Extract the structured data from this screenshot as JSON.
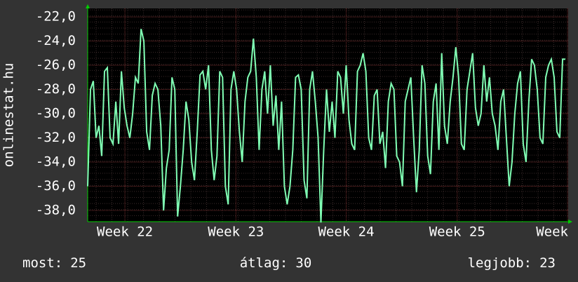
{
  "chart_data": {
    "type": "line",
    "y_label": "onlinestat.hu",
    "ylim": [
      -38.93,
      -21.3
    ],
    "yticks": [
      {
        "value": -22,
        "label": "-22,0"
      },
      {
        "value": -24,
        "label": "-24,0"
      },
      {
        "value": -26,
        "label": "-26,0"
      },
      {
        "value": -28,
        "label": "-28,0"
      },
      {
        "value": -30,
        "label": "-30,0"
      },
      {
        "value": -32,
        "label": "-32,0"
      },
      {
        "value": -34,
        "label": "-34,0"
      },
      {
        "value": -36,
        "label": "-36,0"
      },
      {
        "value": -38,
        "label": "-38,0"
      }
    ],
    "xlim": [
      0,
      171
    ],
    "xticks": [
      {
        "value": 13.25,
        "label": "Week 22"
      },
      {
        "value": 52.75,
        "label": "Week 23"
      },
      {
        "value": 92,
        "label": "Week 24"
      },
      {
        "value": 131.5,
        "label": "Week 25"
      },
      {
        "value": 170.75,
        "label": "Week"
      }
    ],
    "grid": true,
    "series": [
      {
        "color": "#80ffb4",
        "values": [
          -36,
          -28,
          -27.3,
          -32,
          -31,
          -33.5,
          -26.5,
          -26.2,
          -32,
          -32.5,
          -29,
          -32.5,
          -26.5,
          -29.5,
          -31,
          -32,
          -30,
          -27,
          -27.5,
          -23,
          -24,
          -31.5,
          -33,
          -28.5,
          -27.5,
          -28,
          -31,
          -38,
          -34.5,
          -33,
          -27,
          -28,
          -38.5,
          -36,
          -33,
          -29,
          -30.5,
          -34,
          -35.5,
          -31.5,
          -26.8,
          -26.5,
          -28,
          -26,
          -33,
          -35.5,
          -33.5,
          -26.5,
          -27,
          -36,
          -37.5,
          -28,
          -26.5,
          -28,
          -31.5,
          -34,
          -29,
          -27,
          -26.5,
          -23.8,
          -27,
          -33,
          -28,
          -26.5,
          -30,
          -26,
          -31,
          -28.5,
          -33,
          -29,
          -36,
          -37.5,
          -36,
          -33,
          -27,
          -26.8,
          -28,
          -35.5,
          -37,
          -28,
          -26.5,
          -29,
          -32,
          -39,
          -33,
          -28,
          -31.5,
          -29,
          -32,
          -26.5,
          -27,
          -30,
          -26,
          -30.5,
          -32.5,
          -33,
          -26.5,
          -26,
          -25,
          -26.5,
          -32,
          -33,
          -28.5,
          -28,
          -32.5,
          -31.5,
          -34.5,
          -29,
          -27.5,
          -28,
          -33.5,
          -34,
          -36,
          -29,
          -28,
          -27,
          -32,
          -36.5,
          -33,
          -26,
          -27.5,
          -33.5,
          -35,
          -29,
          -27.5,
          -33,
          -25,
          -31,
          -32.5,
          -29,
          -27,
          -24.5,
          -27,
          -32.5,
          -33,
          -28,
          -26.5,
          -25,
          -29.5,
          -31,
          -30,
          -26,
          -29,
          -27,
          -30,
          -31,
          -33,
          -29,
          -28,
          -32,
          -36,
          -34,
          -30,
          -27.5,
          -26.5,
          -32.5,
          -34,
          -29,
          -25.5,
          -26,
          -28,
          -32,
          -32.5,
          -27,
          -26,
          -25.5,
          -27,
          -31.5,
          -32,
          -25.5,
          -25.5
        ]
      }
    ],
    "stats": [
      {
        "label": "most:",
        "value": 25
      },
      {
        "label": "átlag:",
        "value": 30
      },
      {
        "label": "legjobb:",
        "value": 23
      }
    ]
  }
}
